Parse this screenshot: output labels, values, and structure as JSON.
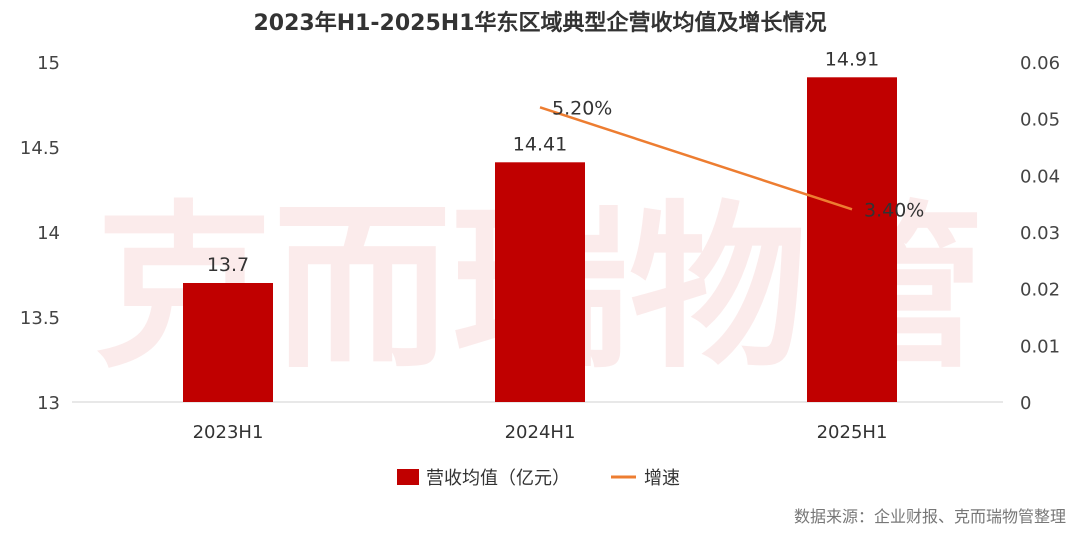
{
  "watermark": "克而瑞物管",
  "source": "数据来源：企业财报、克而瑞物管整理",
  "chart_data": {
    "type": "bar",
    "title": "2023年H1-2025H1华东区域典型企营收均值及增长情况",
    "categories": [
      "2023H1",
      "2024H1",
      "2025H1"
    ],
    "series": [
      {
        "name": "营收均值（亿元）",
        "type": "bar",
        "axis": "left",
        "color": "#c00000",
        "values": [
          13.7,
          14.41,
          14.91
        ],
        "labels": [
          "13.7",
          "14.41",
          "14.91"
        ]
      },
      {
        "name": "增速",
        "type": "line",
        "axis": "right",
        "color": "#ed7d31",
        "values": [
          null,
          0.052,
          0.034
        ],
        "labels": [
          "",
          "5.20%",
          "3.40%"
        ]
      }
    ],
    "y_left": {
      "min": 13,
      "max": 15,
      "ticks": [
        "13",
        "13.5",
        "14",
        "14.5",
        "15"
      ]
    },
    "y_right": {
      "min": 0,
      "max": 0.06,
      "ticks": [
        "0",
        "0.01",
        "0.02",
        "0.03",
        "0.04",
        "0.05",
        "0.06"
      ]
    },
    "grid": false,
    "legend": "bottom"
  }
}
